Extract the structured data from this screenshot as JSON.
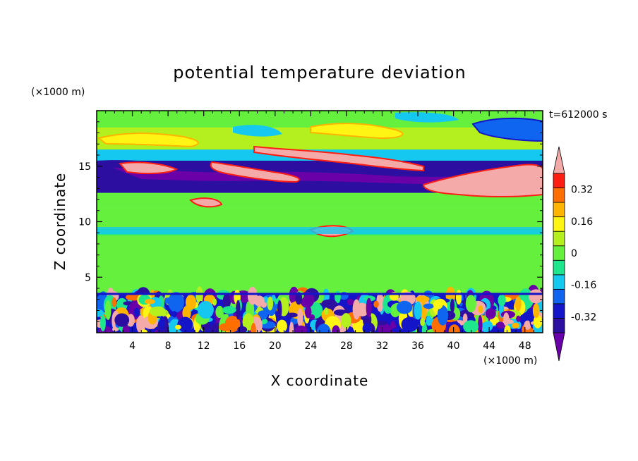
{
  "chart_data": {
    "type": "heatmap",
    "title": "potential temperature deviation",
    "xlabel": "X coordinate",
    "ylabel": "Z coordinate",
    "x_unit": "(×1000 m)",
    "y_unit": "(×1000 m)",
    "time_label": "t=612000 s",
    "xlim": [
      0,
      50
    ],
    "ylim": [
      0,
      20
    ],
    "xticks": [
      "4",
      "8",
      "12",
      "16",
      "20",
      "24",
      "28",
      "32",
      "36",
      "40",
      "44",
      "48"
    ],
    "xtick_values": [
      4,
      8,
      12,
      16,
      20,
      24,
      28,
      32,
      36,
      40,
      44,
      48
    ],
    "yticks": [
      "5",
      "10",
      "15"
    ],
    "ytick_values": [
      5,
      10,
      15
    ],
    "colorbar": {
      "levels": [
        -0.4,
        -0.32,
        -0.24,
        -0.16,
        -0.08,
        0,
        0.08,
        0.16,
        0.24,
        0.32,
        0.4
      ],
      "labels": [
        "0.32",
        "0.16",
        "0",
        "-0.16",
        "-0.32"
      ],
      "label_values": [
        0.32,
        0.16,
        0,
        -0.16,
        -0.32
      ],
      "colors": [
        "#6a00a8",
        "#2c0fa0",
        "#1414c8",
        "#0f64f0",
        "#14c8f0",
        "#1ee68c",
        "#64f03c",
        "#b4f01e",
        "#fff514",
        "#ffb400",
        "#ff6e00",
        "#ff1e14",
        "#f5aaaa"
      ],
      "extend": "both"
    },
    "bands": [
      {
        "z0": 0,
        "z1": 3.4,
        "value": "turbulent"
      },
      {
        "z0": 3.4,
        "z1": 8.8,
        "value": 0.04
      },
      {
        "z0": 8.8,
        "z1": 9.3,
        "value": -0.06
      },
      {
        "z0": 9.3,
        "z1": 11.5,
        "value": 0.06
      },
      {
        "z0": 11.5,
        "z1": 12.6,
        "value": 0.02
      },
      {
        "z0": 12.6,
        "z1": 15.5,
        "value": -0.36
      },
      {
        "z0": 15.5,
        "z1": 16.5,
        "value": -0.1
      },
      {
        "z0": 16.5,
        "z1": 18.5,
        "value": 0.12
      },
      {
        "z0": 18.5,
        "z1": 20,
        "value": 0.06
      }
    ]
  }
}
